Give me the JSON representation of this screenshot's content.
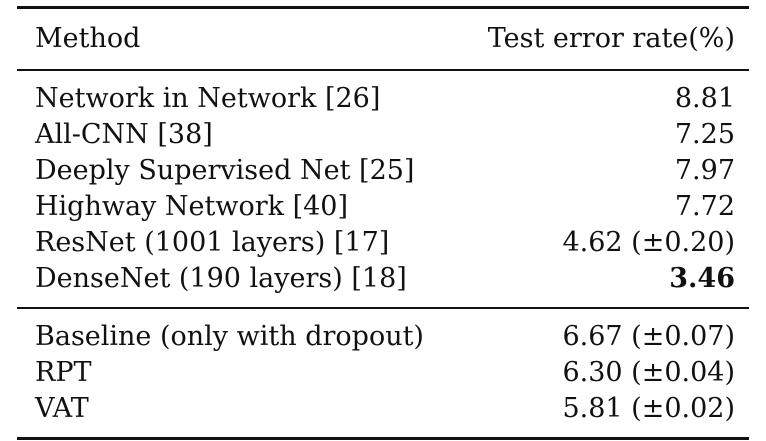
{
  "table": {
    "headers": {
      "method": "Method",
      "error": "Test error rate(%)"
    },
    "group1": [
      {
        "method": "Network in Network [26]",
        "error": "8.81",
        "bold": false
      },
      {
        "method": "All-CNN [38]",
        "error": "7.25",
        "bold": false
      },
      {
        "method": "Deeply Supervised Net [25]",
        "error": "7.97",
        "bold": false
      },
      {
        "method": "Highway Network [40]",
        "error": "7.72",
        "bold": false
      },
      {
        "method": "ResNet (1001 layers) [17]",
        "error": "4.62 (±0.20)",
        "bold": false
      },
      {
        "method": "DenseNet (190 layers) [18]",
        "error": "3.46",
        "bold": true
      }
    ],
    "group2": [
      {
        "method": "Baseline (only with dropout)",
        "error": "6.67 (±0.07)",
        "bold": false
      },
      {
        "method": "RPT",
        "error": "6.30 (±0.04)",
        "bold": false
      },
      {
        "method": "VAT",
        "error": "5.81 (±0.02)",
        "bold": false
      }
    ]
  }
}
